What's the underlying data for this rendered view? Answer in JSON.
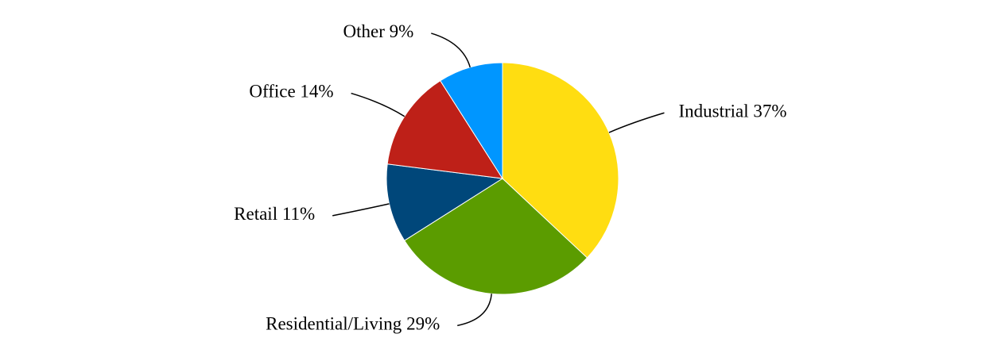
{
  "chart_data": {
    "type": "pie",
    "categories": [
      "Industrial",
      "Residential/Living",
      "Retail",
      "Office",
      "Other"
    ],
    "values": [
      37,
      29,
      11,
      14,
      9
    ],
    "value_labels": [
      "37%",
      "29%",
      "11%",
      "14%",
      "9%"
    ],
    "colors": [
      "#FFDD11",
      "#5B9C00",
      "#00477A",
      "#BE2018",
      "#0096FF"
    ]
  }
}
